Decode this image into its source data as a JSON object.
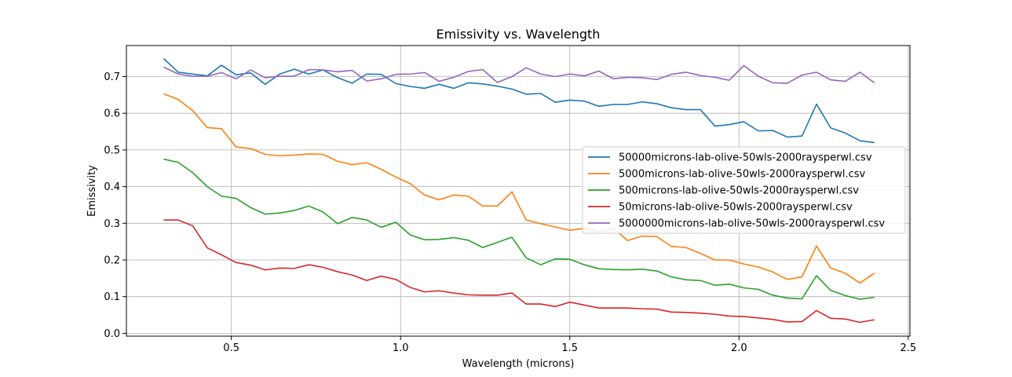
{
  "chart_data": {
    "type": "line",
    "title": "Emissivity vs. Wavelength",
    "xlabel": "Wavelength (microns)",
    "ylabel": "Emissivity",
    "xlim": [
      0.19,
      2.505
    ],
    "ylim": [
      -0.0077,
      0.7846
    ],
    "xticks": [
      0.5,
      1.0,
      1.5,
      2.0,
      2.5
    ],
    "xtick_labels": [
      "0.5",
      "1.0",
      "1.5",
      "2.0",
      "2.5"
    ],
    "yticks": [
      0.0,
      0.1,
      0.2,
      0.3,
      0.4,
      0.5,
      0.6,
      0.7
    ],
    "ytick_labels": [
      "0.0",
      "0.1",
      "0.2",
      "0.3",
      "0.4",
      "0.5",
      "0.6",
      "0.7"
    ],
    "grid": true,
    "legend_position": "center-right",
    "x": [
      0.3,
      0.343,
      0.386,
      0.429,
      0.471,
      0.514,
      0.557,
      0.6,
      0.643,
      0.686,
      0.729,
      0.771,
      0.814,
      0.857,
      0.9,
      0.943,
      0.986,
      1.029,
      1.071,
      1.114,
      1.157,
      1.2,
      1.243,
      1.286,
      1.329,
      1.371,
      1.414,
      1.457,
      1.5,
      1.543,
      1.586,
      1.629,
      1.671,
      1.714,
      1.757,
      1.8,
      1.843,
      1.886,
      1.929,
      1.971,
      2.014,
      2.057,
      2.1,
      2.143,
      2.186,
      2.229,
      2.271,
      2.314,
      2.357,
      2.4
    ],
    "series": [
      {
        "name": "50000microns-lab-olive-50wls-2000raysperwl.csv",
        "color": "#1f77b4",
        "values": [
          0.749,
          0.712,
          0.707,
          0.702,
          0.731,
          0.705,
          0.71,
          0.679,
          0.707,
          0.72,
          0.707,
          0.718,
          0.697,
          0.682,
          0.707,
          0.706,
          0.681,
          0.673,
          0.668,
          0.679,
          0.668,
          0.683,
          0.68,
          0.674,
          0.666,
          0.652,
          0.654,
          0.63,
          0.636,
          0.633,
          0.619,
          0.624,
          0.624,
          0.631,
          0.626,
          0.615,
          0.61,
          0.61,
          0.565,
          0.569,
          0.577,
          0.552,
          0.553,
          0.535,
          0.538,
          0.625,
          0.56,
          0.546,
          0.525,
          0.52
        ]
      },
      {
        "name": "5000microns-lab-olive-50wls-2000raysperwl.csv",
        "color": "#ff7f0e",
        "values": [
          0.653,
          0.638,
          0.607,
          0.561,
          0.558,
          0.508,
          0.504,
          0.488,
          0.484,
          0.486,
          0.489,
          0.488,
          0.469,
          0.46,
          0.465,
          0.447,
          0.426,
          0.408,
          0.377,
          0.364,
          0.377,
          0.374,
          0.347,
          0.347,
          0.386,
          0.309,
          0.299,
          0.29,
          0.281,
          0.286,
          0.277,
          0.286,
          0.253,
          0.265,
          0.264,
          0.237,
          0.234,
          0.218,
          0.2,
          0.2,
          0.189,
          0.181,
          0.167,
          0.147,
          0.154,
          0.238,
          0.178,
          0.164,
          0.137,
          0.164
        ]
      },
      {
        "name": "500microns-lab-olive-50wls-2000raysperwl.csv",
        "color": "#2ca02c",
        "values": [
          0.475,
          0.466,
          0.438,
          0.4,
          0.374,
          0.368,
          0.343,
          0.325,
          0.328,
          0.335,
          0.347,
          0.331,
          0.299,
          0.316,
          0.309,
          0.289,
          0.303,
          0.268,
          0.255,
          0.256,
          0.261,
          0.254,
          0.234,
          0.248,
          0.262,
          0.206,
          0.187,
          0.203,
          0.202,
          0.187,
          0.176,
          0.174,
          0.173,
          0.175,
          0.17,
          0.154,
          0.146,
          0.144,
          0.131,
          0.134,
          0.124,
          0.12,
          0.104,
          0.096,
          0.094,
          0.157,
          0.117,
          0.103,
          0.093,
          0.098
        ]
      },
      {
        "name": "50microns-lab-olive-50wls-2000raysperwl.csv",
        "color": "#d62728",
        "values": [
          0.309,
          0.309,
          0.293,
          0.233,
          0.214,
          0.193,
          0.186,
          0.173,
          0.178,
          0.177,
          0.187,
          0.18,
          0.168,
          0.159,
          0.144,
          0.156,
          0.147,
          0.125,
          0.113,
          0.116,
          0.11,
          0.105,
          0.104,
          0.104,
          0.11,
          0.08,
          0.08,
          0.073,
          0.085,
          0.077,
          0.069,
          0.069,
          0.069,
          0.067,
          0.066,
          0.058,
          0.057,
          0.055,
          0.052,
          0.047,
          0.046,
          0.042,
          0.038,
          0.031,
          0.032,
          0.062,
          0.041,
          0.039,
          0.03,
          0.037
        ]
      },
      {
        "name": "5000000microns-lab-olive-50wls-2000raysperwl.csv",
        "color": "#9467bd",
        "values": [
          0.726,
          0.707,
          0.701,
          0.701,
          0.711,
          0.694,
          0.718,
          0.697,
          0.701,
          0.701,
          0.719,
          0.718,
          0.713,
          0.717,
          0.688,
          0.694,
          0.706,
          0.707,
          0.711,
          0.687,
          0.698,
          0.714,
          0.719,
          0.684,
          0.7,
          0.724,
          0.707,
          0.7,
          0.707,
          0.702,
          0.715,
          0.694,
          0.698,
          0.697,
          0.692,
          0.706,
          0.712,
          0.703,
          0.698,
          0.69,
          0.73,
          0.701,
          0.683,
          0.682,
          0.704,
          0.712,
          0.691,
          0.687,
          0.712,
          0.683
        ]
      }
    ]
  }
}
